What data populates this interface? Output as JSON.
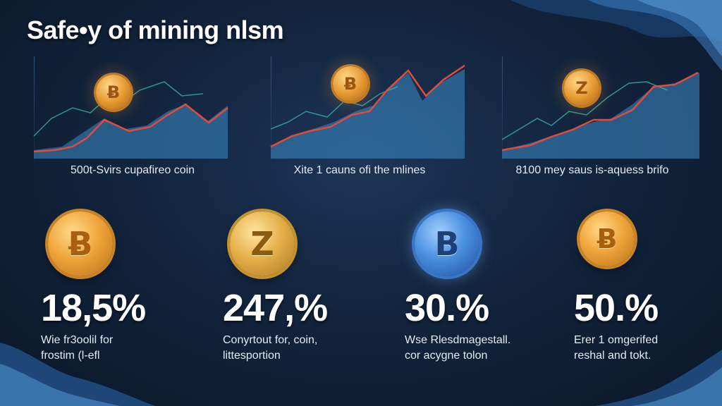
{
  "header": {
    "title": "Safe•y of mining nlsm"
  },
  "charts": [
    {
      "caption": "500t-Svirs cupafireo coin",
      "coin_symbol": "Ƀ"
    },
    {
      "caption": "Xite 1 cauns ofi the mlines",
      "coin_symbol": "Ƀ"
    },
    {
      "caption": "8100 mey saus is-aquess brifo",
      "coin_symbol": "Z"
    }
  ],
  "stats": [
    {
      "value": "18,5%",
      "desc_line1": "Wie fr3oolil for",
      "desc_line2": "frostim (l-efl",
      "coin_symbol": "Ƀ",
      "coin_style": "gold"
    },
    {
      "value": "247,%",
      "desc_line1": "Conyrtout for, coin,",
      "desc_line2": "littesportion",
      "coin_symbol": "Z",
      "coin_style": "gold2"
    },
    {
      "value": "30.%",
      "desc_line1": "Wse Rlesdmagestall.",
      "desc_line2": "cor acygne tolon",
      "coin_symbol": "B",
      "coin_style": "blue"
    },
    {
      "value": "50.%",
      "desc_line1": "Erer 1 omgerifed",
      "desc_line2": "reshal and tokt.",
      "coin_symbol": "Ƀ",
      "coin_style": "gold"
    }
  ],
  "colors": {
    "background": "#12243d",
    "area_fill": "#3d8cc8",
    "line_red": "#e24b3b",
    "line_teal": "#37b3a5",
    "coin_gold": "#f0a53a",
    "coin_blue": "#4a8fe0"
  }
}
